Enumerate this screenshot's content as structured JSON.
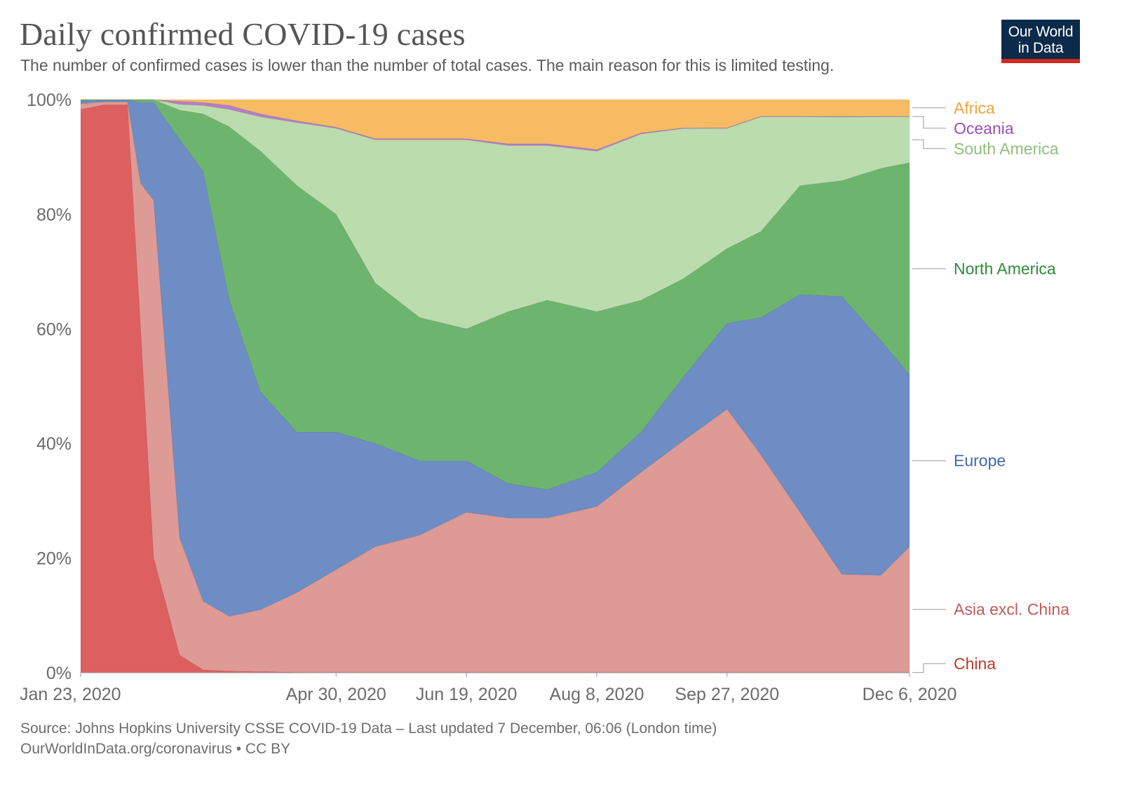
{
  "header": {
    "title": "Daily confirmed COVID-19 cases",
    "subtitle": "The number of confirmed cases is lower than the number of total cases. The main reason for this is limited testing."
  },
  "logo": {
    "line1": "Our World",
    "line2": "in Data"
  },
  "footer": {
    "source": "Source: Johns Hopkins University CSSE COVID-19 Data – Last updated 7 December, 06:06 (London time)",
    "credit": "OurWorldInData.org/coronavirus • CC BY"
  },
  "chart_data": {
    "type": "area",
    "stacked": true,
    "normalized": true,
    "title": "Daily confirmed COVID-19 cases",
    "subtitle": "The number of confirmed cases is lower than the number of total cases. The main reason for this is limited testing.",
    "x_tick_labels": [
      "Jan 23, 2020",
      "Apr 30, 2020",
      "Jun 19, 2020",
      "Aug 8, 2020",
      "Sep 27, 2020",
      "Dec 6, 2020"
    ],
    "x_tick_dates": [
      "2020-01-23",
      "2020-04-30",
      "2020-06-19",
      "2020-08-08",
      "2020-09-27",
      "2020-12-06"
    ],
    "xlim": [
      "2020-01-23",
      "2020-12-06"
    ],
    "y_tick_labels": [
      "0%",
      "20%",
      "40%",
      "60%",
      "80%",
      "100%"
    ],
    "y_ticks": [
      0,
      20,
      40,
      60,
      80,
      100
    ],
    "ylim": [
      0,
      100
    ],
    "grid": "horizontal dashed",
    "legend_position": "right",
    "x": [
      "2020-01-23",
      "2020-02-01",
      "2020-02-10",
      "2020-02-15",
      "2020-02-20",
      "2020-03-01",
      "2020-03-10",
      "2020-03-20",
      "2020-04-01",
      "2020-04-15",
      "2020-04-30",
      "2020-05-15",
      "2020-06-01",
      "2020-06-19",
      "2020-07-05",
      "2020-07-20",
      "2020-08-08",
      "2020-08-25",
      "2020-09-10",
      "2020-09-27",
      "2020-10-10",
      "2020-10-25",
      "2020-11-10",
      "2020-11-25",
      "2020-12-06"
    ],
    "series": [
      {
        "name": "China",
        "color": "#dd5f5f",
        "label_color": "#c0392b",
        "values": [
          98,
          99,
          99,
          60,
          20,
          3,
          0.5,
          0.3,
          0.2,
          0.1,
          0.1,
          0.1,
          0.1,
          0.1,
          0.1,
          0.1,
          0.1,
          0.1,
          0.1,
          0.1,
          0.1,
          0.1,
          0.1,
          0.1,
          0.1
        ]
      },
      {
        "name": "Asia excl. China",
        "color": "#de9a94",
        "label_color": "#c15b5b",
        "values": [
          1,
          0.5,
          0.5,
          25,
          62,
          20,
          12,
          9.5,
          10.8,
          13.9,
          17.9,
          21.9,
          23.9,
          27.9,
          26.9,
          26.9,
          28.9,
          34.9,
          39.9,
          45.9,
          37.9,
          27.9,
          16.9,
          16.9,
          21.9
        ]
      },
      {
        "name": "Europe",
        "color": "#6d8dc4",
        "label_color": "#3f6aa8",
        "values": [
          0.5,
          0.3,
          0.3,
          14,
          17,
          68,
          75,
          55,
          38,
          28,
          24,
          18,
          13,
          9,
          6,
          5,
          6,
          7,
          11,
          15,
          24,
          38,
          48,
          41,
          30
        ]
      },
      {
        "name": "North America",
        "color": "#6db56e",
        "label_color": "#2f8c3a",
        "values": [
          0.2,
          0.1,
          0.1,
          0.5,
          0.5,
          5,
          10,
          30,
          42,
          43,
          38,
          28,
          25,
          23,
          30,
          33,
          28,
          23,
          17,
          13,
          15,
          19,
          20,
          30,
          37
        ]
      },
      {
        "name": "South America",
        "color": "#bbdcac",
        "label_color": "#8fbf7c",
        "values": [
          0,
          0,
          0,
          0,
          0,
          1,
          1.5,
          3,
          6,
          11,
          15,
          25,
          31,
          33,
          29,
          27,
          28,
          29,
          26,
          21,
          20,
          12,
          11,
          9,
          8
        ]
      },
      {
        "name": "Oceania",
        "color": "#b67ec9",
        "label_color": "#9a4fb5",
        "values": [
          0,
          0,
          0,
          0,
          0,
          0.5,
          0.5,
          0.7,
          0.5,
          0.3,
          0.2,
          0.2,
          0.2,
          0.2,
          0.3,
          0.3,
          0.3,
          0.2,
          0.1,
          0.1,
          0.1,
          0.1,
          0.1,
          0.1,
          0.1
        ]
      },
      {
        "name": "Africa",
        "color": "#f7bb63",
        "label_color": "#f0a43a",
        "values": [
          0,
          0,
          0,
          0,
          0,
          0.3,
          0.5,
          1,
          2.5,
          3.7,
          4.8,
          6.8,
          6.8,
          6.8,
          7.7,
          7.7,
          8.7,
          5.8,
          4.9,
          4.9,
          2.9,
          2.9,
          2.9,
          2.9,
          2.9
        ]
      }
    ]
  }
}
